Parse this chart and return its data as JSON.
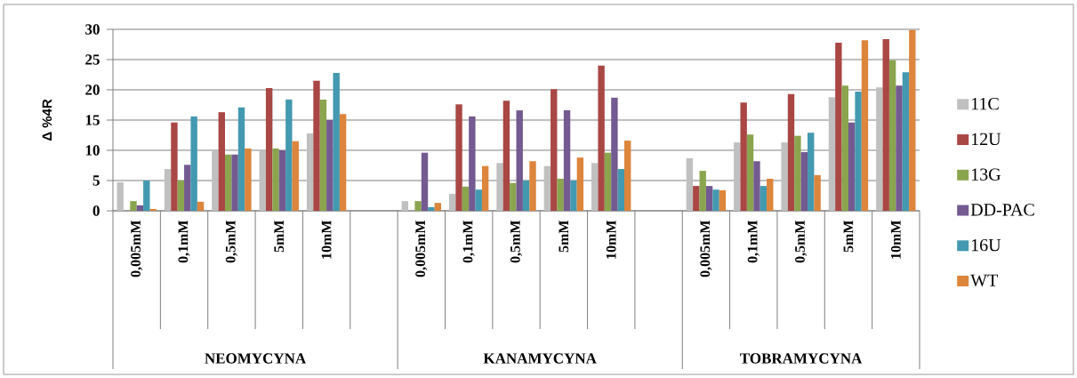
{
  "chart_data": {
    "type": "bar",
    "ylabel": "Δ %4R",
    "categories": [
      "0,005mM",
      "0,1mM",
      "0,5mM",
      "5mM",
      "10mM",
      null,
      "0,005mM",
      "0,1mM",
      "0,5mM",
      "5mM",
      "10mM",
      null,
      "0,005mM",
      "0,1mM",
      "0,5mM",
      "5mM",
      "10mM"
    ],
    "annotations": [
      "NEOMYCYNA",
      "KANAMYCYNA",
      "TOBRAMYCYNA"
    ],
    "series": [
      {
        "name": "11C",
        "color": "#c0c0c0",
        "values": [
          4.7,
          6.9,
          9.9,
          9.9,
          12.8,
          null,
          1.6,
          2.8,
          7.9,
          7.4,
          7.9,
          null,
          8.7,
          11.3,
          11.3,
          18.8,
          20.4
        ]
      },
      {
        "name": "12U",
        "color": "#a94745",
        "values": [
          0,
          14.6,
          16.3,
          20.3,
          21.5,
          null,
          0,
          17.6,
          18.2,
          20.1,
          24.0,
          null,
          4.1,
          17.9,
          19.3,
          27.8,
          28.4
        ]
      },
      {
        "name": "13G",
        "color": "#8aa54e",
        "values": [
          1.6,
          5.0,
          9.3,
          10.3,
          18.4,
          null,
          1.6,
          4.0,
          4.6,
          5.3,
          9.6,
          null,
          6.6,
          12.6,
          12.4,
          20.7,
          24.9
        ]
      },
      {
        "name": "DD-PAC",
        "color": "#735a90",
        "values": [
          0.9,
          7.6,
          9.3,
          10.0,
          15.0,
          null,
          9.6,
          15.6,
          16.6,
          16.6,
          18.7,
          null,
          4.1,
          8.2,
          9.7,
          14.6,
          20.7
        ]
      },
      {
        "name": "16U",
        "color": "#4399b0",
        "values": [
          5.0,
          15.6,
          17.1,
          18.4,
          22.8,
          null,
          0.6,
          3.5,
          5.0,
          5.0,
          6.9,
          null,
          3.5,
          4.1,
          12.9,
          19.7,
          22.9
        ]
      },
      {
        "name": "WT",
        "color": "#dc853c",
        "values": [
          0.3,
          1.5,
          10.3,
          11.5,
          16.0,
          null,
          1.3,
          7.4,
          8.2,
          8.8,
          11.6,
          null,
          3.4,
          5.3,
          5.9,
          28.2,
          29.9
        ]
      }
    ],
    "ylim": [
      0,
      30
    ],
    "yticks": [
      0,
      5,
      10,
      15,
      20,
      25,
      30
    ],
    "grid": "y",
    "legend": "right"
  }
}
